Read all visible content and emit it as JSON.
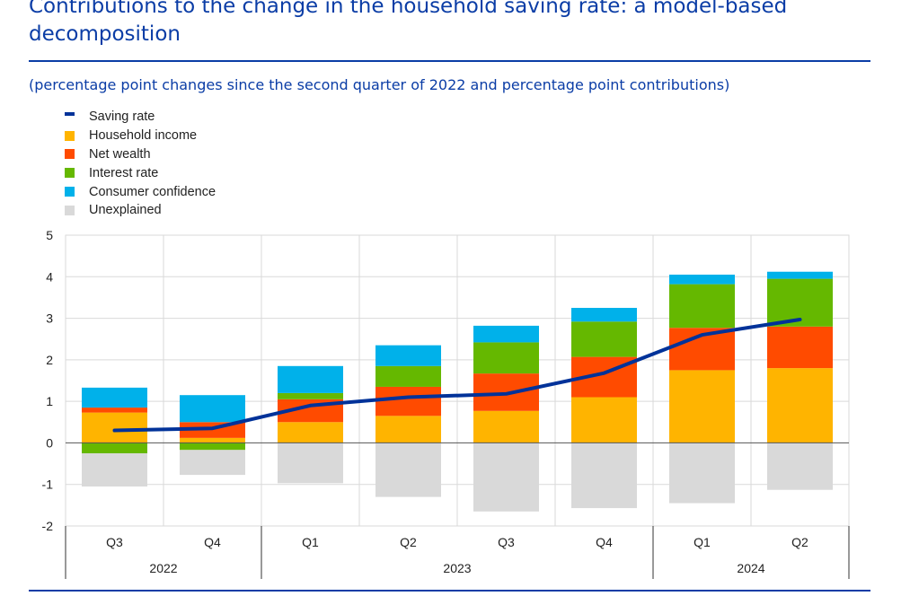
{
  "title": "Contributions to the change in the household saving rate: a model-based decomposition",
  "subtitle": "(percentage point changes since the second quarter of 2022 and percentage point contributions)",
  "chart_data": {
    "type": "bar",
    "stacked": true,
    "title": "Contributions to the change in the household saving rate: a model-based decomposition",
    "subtitle": "(percentage point changes since the second quarter of 2022 and percentage point contributions)",
    "categories": [
      "Q3",
      "Q4",
      "Q1",
      "Q2",
      "Q3",
      "Q4",
      "Q1",
      "Q2"
    ],
    "year_groups": [
      {
        "label": "2022",
        "start": 0,
        "end": 1
      },
      {
        "label": "2023",
        "start": 2,
        "end": 5
      },
      {
        "label": "2024",
        "start": 6,
        "end": 7
      }
    ],
    "ylim": [
      -2,
      5
    ],
    "yticks": [
      5,
      4,
      3,
      2,
      1,
      0,
      -1,
      -2
    ],
    "grid": true,
    "legend_position": "top-left",
    "series": [
      {
        "name": "Household income",
        "color": "#ffb400",
        "values": [
          0.73,
          0.12,
          0.5,
          0.65,
          0.77,
          1.1,
          1.75,
          1.8
        ]
      },
      {
        "name": "Net wealth",
        "color": "#ff4b00",
        "values": [
          0.12,
          0.38,
          0.55,
          0.7,
          0.9,
          0.97,
          1.02,
          1.0
        ]
      },
      {
        "name": "Interest rate",
        "color": "#65b800",
        "values": [
          -0.25,
          -0.17,
          0.15,
          0.5,
          0.75,
          0.85,
          1.05,
          1.15
        ]
      },
      {
        "name": "Consumer confidence",
        "color": "#00b1ea",
        "values": [
          0.48,
          0.65,
          0.65,
          0.5,
          0.4,
          0.33,
          0.23,
          0.17
        ]
      },
      {
        "name": "Unexplained",
        "color": "#d9d9d9",
        "values": [
          -0.8,
          -0.6,
          -0.97,
          -1.3,
          -1.65,
          -1.57,
          -1.45,
          -1.13
        ]
      }
    ],
    "line_series": {
      "name": "Saving rate",
      "color": "#003299",
      "values": [
        0.3,
        0.35,
        0.9,
        1.1,
        1.18,
        1.68,
        2.6,
        2.97
      ]
    }
  }
}
